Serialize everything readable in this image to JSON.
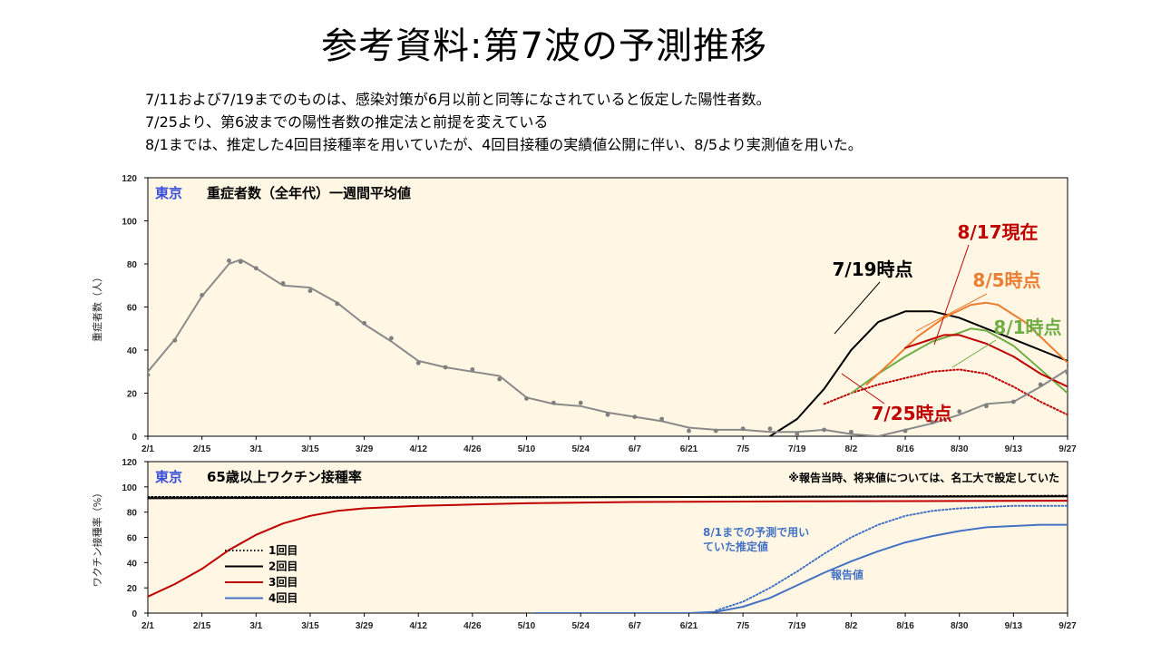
{
  "title": "参考資料:第7波の予測推移",
  "notes": [
    "7/11および7/19までのものは、感染対策が6月以前と同等になされていると仮定した陽性者数。",
    "7/25より、第6波までの陽性者数の推定法と前提を変えている",
    "8/1までは、推定した4回目接種率を用いていたが、4回目接種の実績値公開に伴い、8/5より実測値を用いた。"
  ],
  "colors": {
    "panel_bg": "#fff6e3",
    "tokyo": "#3b4fd8",
    "black": "#000000",
    "green": "#70ad47",
    "orange": "#ed7d31",
    "red": "#c00000",
    "gray": "#8a8a8a",
    "blue": "#4472c4"
  },
  "chart_data": [
    {
      "type": "line",
      "region": "東京",
      "title": "重症者数（全年代）一週間平均値",
      "ylabel": "重症者数（人）",
      "ylim": [
        0,
        120
      ],
      "yticks": [
        "0",
        "20",
        "40",
        "60",
        "80",
        "100",
        "120"
      ],
      "x_ticks": [
        "2/1",
        "2/15",
        "3/1",
        "3/15",
        "3/29",
        "4/12",
        "4/26",
        "5/10",
        "5/24",
        "6/7",
        "6/21",
        "7/5",
        "7/19",
        "8/2",
        "8/16",
        "8/30",
        "9/13",
        "9/27"
      ],
      "x_range_days": [
        0,
        238
      ],
      "series": [
        {
          "name": "7/19時点",
          "color": "black",
          "points": [
            [
              161,
              0
            ],
            [
              168,
              8
            ],
            [
              175,
              22
            ],
            [
              182,
              40
            ],
            [
              189,
              53
            ],
            [
              196,
              58
            ],
            [
              203,
              58
            ],
            [
              210,
              55
            ],
            [
              217,
              50
            ],
            [
              224,
              45
            ],
            [
              231,
              40
            ],
            [
              238,
              35
            ],
            [
              245,
              32
            ],
            [
              252,
              30
            ],
            [
              259,
              28
            ]
          ]
        },
        {
          "name": "7/25時点",
          "color": "red",
          "dotted": true,
          "points": [
            [
              175,
              15
            ],
            [
              182,
              20
            ],
            [
              189,
              24
            ],
            [
              196,
              27
            ],
            [
              203,
              30
            ],
            [
              210,
              31
            ],
            [
              217,
              29
            ],
            [
              224,
              23
            ],
            [
              231,
              16
            ],
            [
              238,
              10
            ],
            [
              245,
              6
            ],
            [
              252,
              4
            ],
            [
              259,
              3
            ]
          ]
        },
        {
          "name": "8/1時点",
          "color": "green",
          "points": [
            [
              182,
              20
            ],
            [
              189,
              29
            ],
            [
              196,
              37
            ],
            [
              203,
              44
            ],
            [
              210,
              48
            ],
            [
              213,
              50
            ],
            [
              217,
              49
            ],
            [
              224,
              42
            ],
            [
              231,
              31
            ],
            [
              238,
              20
            ],
            [
              245,
              13
            ],
            [
              252,
              9
            ],
            [
              259,
              7
            ]
          ]
        },
        {
          "name": "8/5時点",
          "color": "orange",
          "points": [
            [
              186,
              24
            ],
            [
              192,
              34
            ],
            [
              199,
              46
            ],
            [
              206,
              55
            ],
            [
              213,
              61
            ],
            [
              217,
              62
            ],
            [
              220,
              61
            ],
            [
              227,
              53
            ],
            [
              234,
              41
            ],
            [
              241,
              29
            ],
            [
              248,
              20
            ],
            [
              255,
              14
            ],
            [
              259,
              12
            ]
          ]
        },
        {
          "name": "8/17現在",
          "color": "red",
          "points": [
            [
              196,
              41
            ],
            [
              201,
              44
            ],
            [
              206,
              47
            ],
            [
              210,
              47
            ],
            [
              217,
              43
            ],
            [
              224,
              37
            ],
            [
              231,
              29
            ],
            [
              238,
              23
            ],
            [
              245,
              18
            ],
            [
              252,
              13
            ],
            [
              259,
              11
            ]
          ]
        },
        {
          "name": "報告値",
          "color": "gray",
          "markers": true,
          "points": [
            [
              0,
              30
            ],
            [
              7,
              45
            ],
            [
              14,
              65
            ],
            [
              21,
              80
            ],
            [
              24,
              82
            ],
            [
              28,
              78
            ],
            [
              35,
              70
            ],
            [
              42,
              69
            ],
            [
              49,
              62
            ],
            [
              56,
              52
            ],
            [
              63,
              44
            ],
            [
              70,
              35
            ],
            [
              77,
              32
            ],
            [
              84,
              30
            ],
            [
              91,
              28
            ],
            [
              98,
              18
            ],
            [
              105,
              15
            ],
            [
              112,
              14
            ],
            [
              119,
              11
            ],
            [
              126,
              9
            ],
            [
              133,
              7
            ],
            [
              140,
              4
            ],
            [
              147,
              3
            ],
            [
              154,
              3
            ],
            [
              161,
              2
            ],
            [
              168,
              2
            ],
            [
              175,
              3
            ],
            [
              182,
              1
            ],
            [
              189,
              0
            ],
            [
              196,
              3
            ],
            [
              203,
              6
            ],
            [
              210,
              10
            ],
            [
              217,
              15
            ],
            [
              224,
              16
            ],
            [
              231,
              23
            ],
            [
              238,
              31
            ],
            [
              245,
              38
            ],
            [
              252,
              40
            ],
            [
              259,
              37
            ],
            [
              266,
              38
            ],
            [
              273,
              36
            ],
            [
              280,
              33
            ],
            [
              287,
              32
            ],
            [
              294,
              29
            ],
            [
              301,
              25
            ],
            [
              308,
              19
            ],
            [
              315,
              16
            ]
          ]
        }
      ],
      "annotations": [
        "7/19時点",
        "8/17現在",
        "8/5時点",
        "8/1時点",
        "7/25時点"
      ]
    },
    {
      "type": "line",
      "region": "東京",
      "title": "65歳以上ワクチン接種率",
      "note": "※報告当時、将来値については、名工大で設定していた",
      "ylabel": "ワクチン接種率（%）",
      "ylim": [
        0,
        120
      ],
      "yticks": [
        "0",
        "20",
        "40",
        "60",
        "80",
        "100",
        "120"
      ],
      "x_ticks": [
        "2/1",
        "2/15",
        "3/1",
        "3/15",
        "3/29",
        "4/12",
        "4/26",
        "5/10",
        "5/24",
        "6/7",
        "6/21",
        "7/5",
        "7/19",
        "8/2",
        "8/16",
        "8/30",
        "9/13",
        "9/27"
      ],
      "series": [
        {
          "name": "1回目",
          "color": "black",
          "dotted": true,
          "points": [
            [
              0,
              92
            ],
            [
              70,
              92
            ],
            [
              140,
              92
            ],
            [
              238,
              93
            ]
          ]
        },
        {
          "name": "2回目",
          "color": "black",
          "points": [
            [
              0,
              91
            ],
            [
              70,
              91.5
            ],
            [
              140,
              92
            ],
            [
              238,
              92.5
            ]
          ]
        },
        {
          "name": "3回目",
          "color": "red",
          "points": [
            [
              0,
              13
            ],
            [
              7,
              23
            ],
            [
              14,
              35
            ],
            [
              21,
              50
            ],
            [
              28,
              62
            ],
            [
              35,
              71
            ],
            [
              42,
              77
            ],
            [
              49,
              81
            ],
            [
              56,
              83
            ],
            [
              70,
              85
            ],
            [
              84,
              86
            ],
            [
              98,
              87
            ],
            [
              126,
              88
            ],
            [
              168,
              88.5
            ],
            [
              238,
              89
            ]
          ]
        },
        {
          "name": "4回目",
          "color": "blue",
          "points": [
            [
              100,
              0
            ],
            [
              140,
              0
            ],
            [
              147,
              1
            ],
            [
              154,
              5
            ],
            [
              161,
              12
            ],
            [
              168,
              22
            ],
            [
              175,
              32
            ],
            [
              182,
              41
            ],
            [
              189,
              49
            ],
            [
              196,
              56
            ],
            [
              203,
              61
            ],
            [
              210,
              65
            ],
            [
              217,
              68
            ],
            [
              224,
              69
            ],
            [
              231,
              70
            ],
            [
              238,
              70
            ]
          ]
        },
        {
          "name": "8/1までの予測で用いていた推定値",
          "color": "blue",
          "dotted": true,
          "points": [
            [
              147,
              2
            ],
            [
              154,
              9
            ],
            [
              161,
              20
            ],
            [
              168,
              33
            ],
            [
              175,
              47
            ],
            [
              182,
              60
            ],
            [
              189,
              70
            ],
            [
              196,
              77
            ],
            [
              203,
              81
            ],
            [
              210,
              83
            ],
            [
              217,
              84
            ],
            [
              224,
              85
            ],
            [
              231,
              85
            ],
            [
              238,
              85
            ]
          ]
        }
      ],
      "legend": [
        "1回目",
        "2回目",
        "3回目",
        "4回目"
      ],
      "annotations": [
        "8/1までの予測で用い\nていた推定値",
        "報告値"
      ]
    }
  ]
}
